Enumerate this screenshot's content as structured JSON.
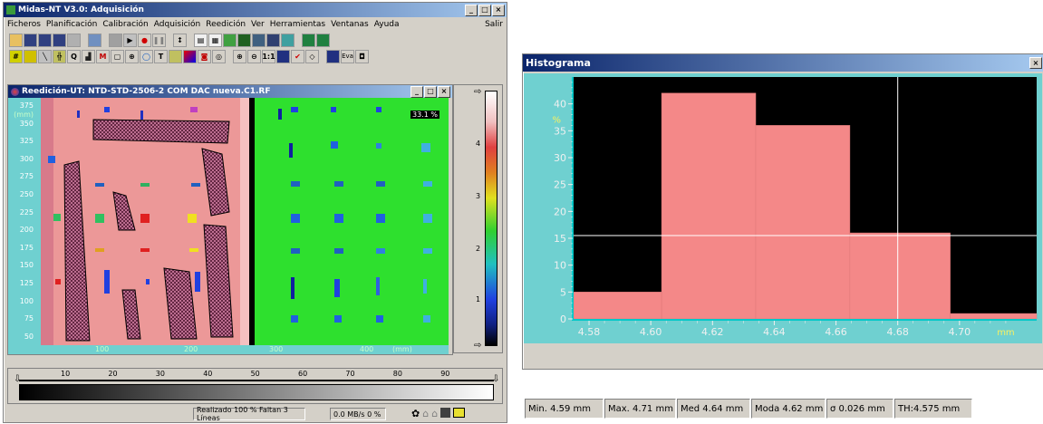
{
  "main_window": {
    "title": "Midas-NT V3.0: Adquisición",
    "menu": [
      "Ficheros",
      "Planificación",
      "Calibración",
      "Adquisición",
      "Reedición",
      "Ver",
      "Herramientas",
      "Ventanas",
      "Ayuda"
    ],
    "exit_label": "Salir",
    "toolbar_eva_label": "Eva",
    "toolbar_11_label": "1:1"
  },
  "cscan_window": {
    "title": "Reedición-UT: NTD-STD-2506-2 COM DAC nueva.C1.RF",
    "y_ticks": [
      "375",
      "350",
      "325",
      "300",
      "275",
      "250",
      "225",
      "200",
      "175",
      "150",
      "125",
      "100",
      "75",
      "50"
    ],
    "y_unit": "(mm)",
    "x_ticks": [
      "100",
      "200",
      "300",
      "400"
    ],
    "x_unit": "(mm)",
    "scale_ticks": [
      "4",
      "3",
      "2",
      "1"
    ],
    "percent_badge": "33.1 %"
  },
  "gain_ruler": {
    "ticks": [
      "10",
      "20",
      "30",
      "40",
      "50",
      "60",
      "70",
      "80",
      "90"
    ]
  },
  "status_bar": {
    "progress_text": "Realizado 100 % Faltan 3 Líneas",
    "rate_text": "0.0 MB/s 0 %"
  },
  "histogram_window": {
    "title": "Histograma",
    "y_ticks": [
      "40",
      "35",
      "30",
      "25",
      "20",
      "15",
      "10",
      "5",
      "0"
    ],
    "y_unit": "%",
    "x_ticks": [
      "4.58",
      "4.60",
      "4.62",
      "4.64",
      "4.66",
      "4.68",
      "4.70"
    ],
    "x_unit": "mm",
    "stats": {
      "min": "Min.  4.59 mm",
      "max": "Max.  4.71 mm",
      "med": "Med  4.64 mm",
      "moda": "Moda  4.62 mm",
      "sigma": "σ 0.026 mm",
      "th": "TH:4.575 mm"
    }
  },
  "chart_data": {
    "type": "bar",
    "title": "Histograma",
    "xlabel": "mm",
    "ylabel": "%",
    "bin_edges": [
      4.575,
      4.6035,
      4.634,
      4.6645,
      4.697,
      4.725
    ],
    "values": [
      5,
      42,
      36,
      16,
      1
    ],
    "ylim": [
      0,
      45
    ],
    "bar_color": "#f48888",
    "background": "#000000"
  },
  "colors": {
    "window_face": "#d4d0c8",
    "title_active": "#0a246a",
    "axis_cyan": "#00c8c8",
    "plot_cyan_bg": "#6fd0d0",
    "cscan_red": "#e88888",
    "cscan_green": "#28e028"
  }
}
